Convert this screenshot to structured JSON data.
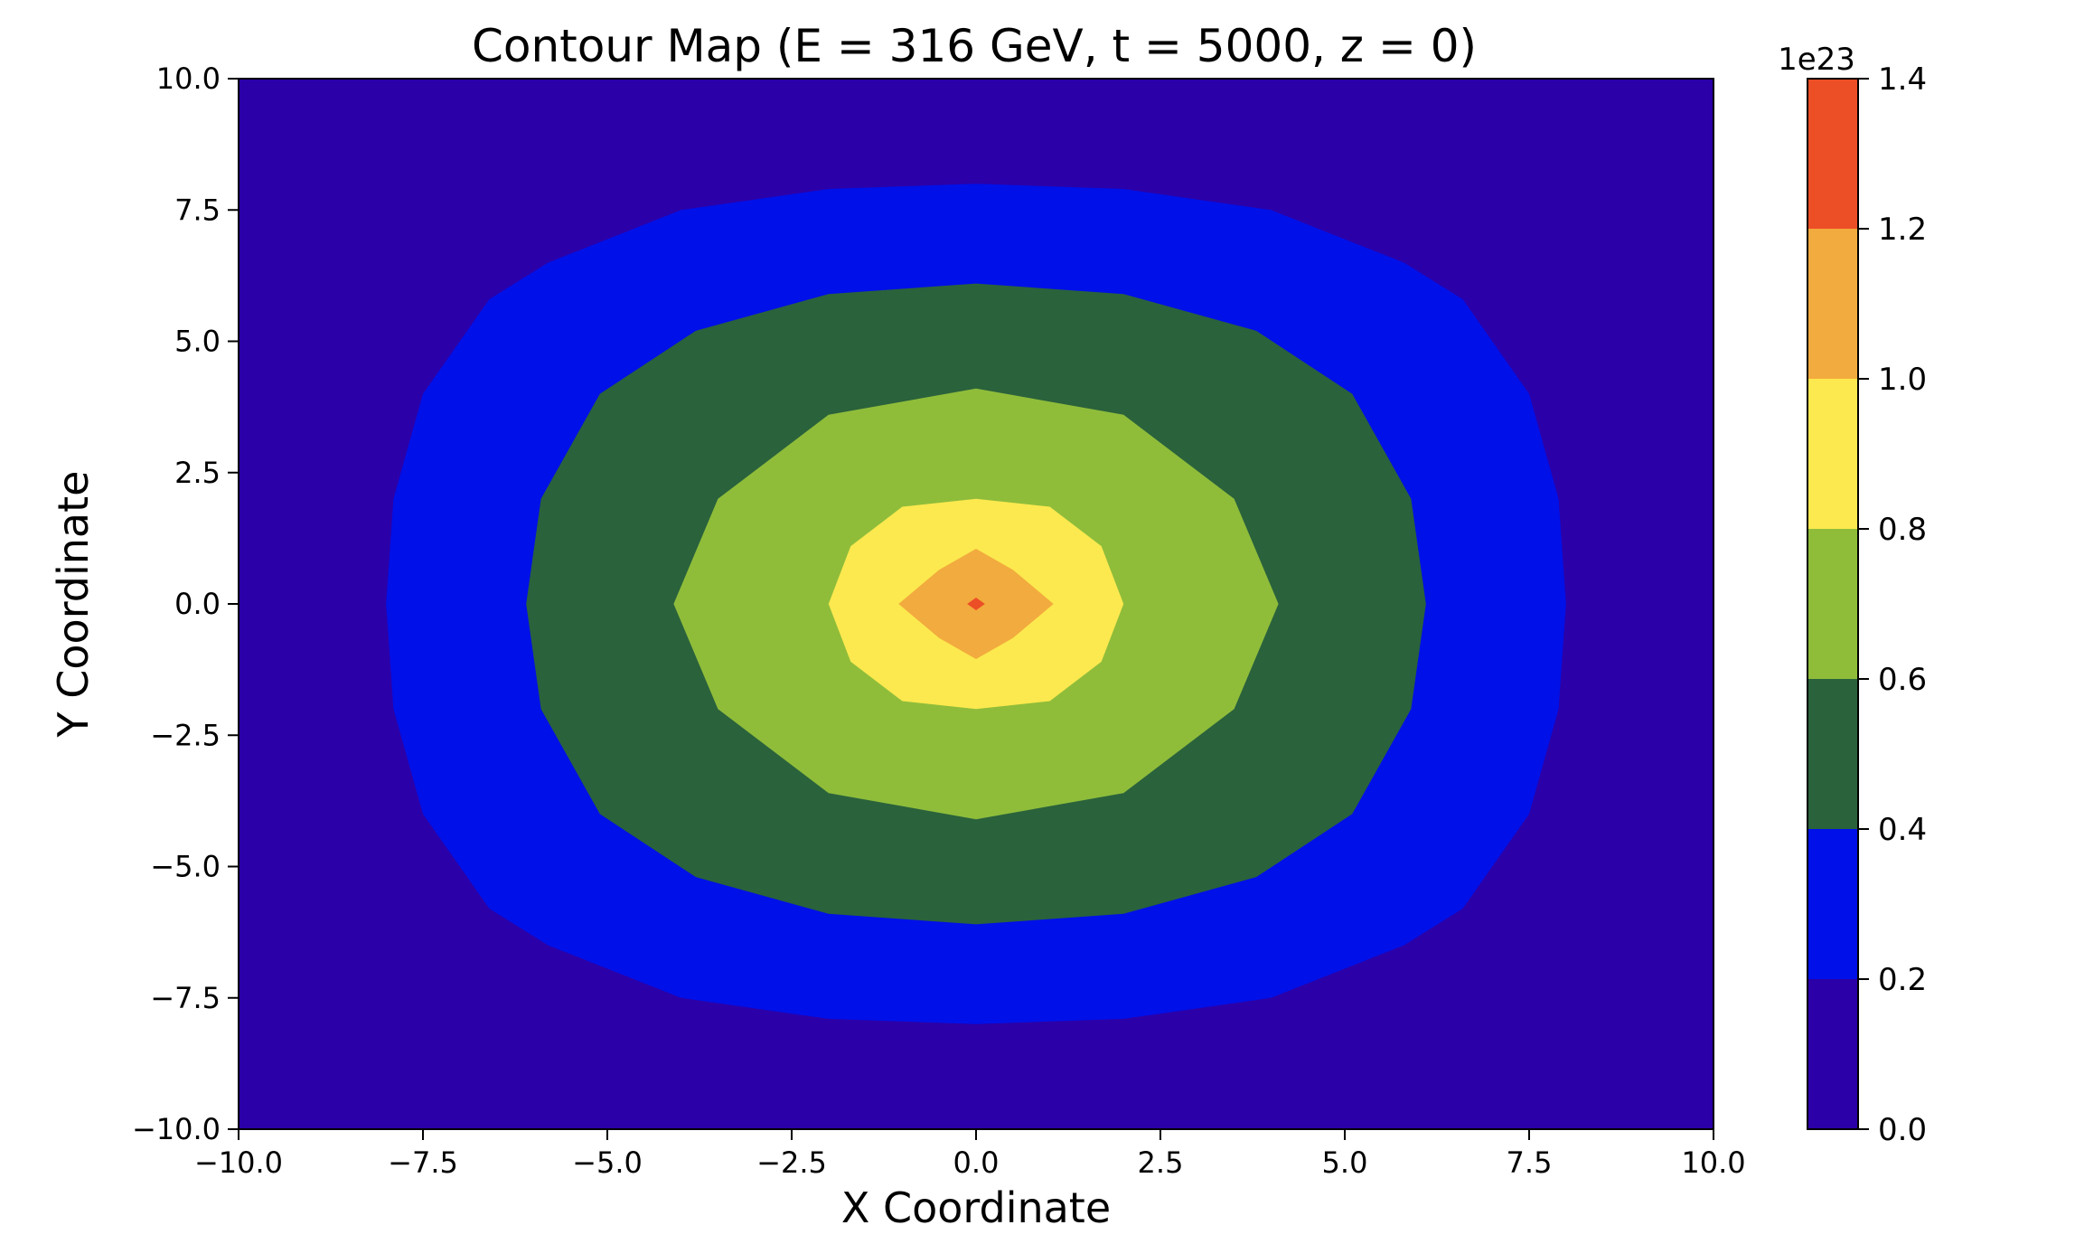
{
  "chart_data": {
    "type": "contourf",
    "title": "Contour Map (E = 316 GeV, t = 5000, z = 0)",
    "xlabel": "X Coordinate",
    "ylabel": "Y Coordinate",
    "xlim": [
      -10,
      10
    ],
    "ylim": [
      -10,
      10
    ],
    "x_ticks": [
      -10,
      -7.5,
      -5,
      -2.5,
      0,
      2.5,
      5,
      7.5,
      10
    ],
    "x_tick_labels": [
      "−10.0",
      "−7.5",
      "−5.0",
      "−2.5",
      "0.0",
      "2.5",
      "5.0",
      "7.5",
      "10.0"
    ],
    "y_ticks": [
      -10,
      -7.5,
      -5,
      -2.5,
      0,
      2.5,
      5,
      7.5,
      10
    ],
    "y_tick_labels": [
      "−10.0",
      "−7.5",
      "−5.0",
      "−2.5",
      "0.0",
      "2.5",
      "5.0",
      "7.5",
      "10.0"
    ],
    "grid": false,
    "colorbar": {
      "position": "right",
      "exponent_label": "1e23",
      "ticks": [
        0,
        0.2,
        0.4,
        0.6,
        0.8,
        1.0,
        1.2,
        1.4
      ],
      "tick_labels": [
        "0.0",
        "0.2",
        "0.4",
        "0.6",
        "0.8",
        "1.0",
        "1.2",
        "1.4"
      ]
    },
    "levels": [
      {
        "range": [
          0.0,
          0.2
        ],
        "color": "#2c00a8"
      },
      {
        "range": [
          0.2,
          0.4
        ],
        "color": "#0010e8"
      },
      {
        "range": [
          0.4,
          0.6
        ],
        "color": "#2a623c"
      },
      {
        "range": [
          0.6,
          0.8
        ],
        "color": "#8fbd3a"
      },
      {
        "range": [
          0.8,
          1.0
        ],
        "color": "#fce94f"
      },
      {
        "range": [
          1.0,
          1.2
        ],
        "color": "#f2ab3e"
      },
      {
        "range": [
          1.2,
          1.4
        ],
        "color": "#ec4e26"
      }
    ],
    "contour_boundaries": [
      {
        "level": 0.2,
        "points": [
          [
            0,
            8
          ],
          [
            2,
            7.9
          ],
          [
            4,
            7.5
          ],
          [
            5.8,
            6.5
          ],
          [
            6.6,
            5.8
          ],
          [
            7.5,
            4
          ],
          [
            7.9,
            2
          ],
          [
            8,
            0
          ],
          [
            7.9,
            -2
          ],
          [
            7.5,
            -4
          ],
          [
            6.6,
            -5.8
          ],
          [
            5.8,
            -6.5
          ],
          [
            4,
            -7.5
          ],
          [
            2,
            -7.9
          ],
          [
            0,
            -8
          ],
          [
            -2,
            -7.9
          ],
          [
            -4,
            -7.5
          ],
          [
            -5.8,
            -6.5
          ],
          [
            -6.6,
            -5.8
          ],
          [
            -7.5,
            -4
          ],
          [
            -7.9,
            -2
          ],
          [
            -8,
            0
          ],
          [
            -7.9,
            2
          ],
          [
            -7.5,
            4
          ],
          [
            -6.6,
            5.8
          ],
          [
            -5.8,
            6.5
          ],
          [
            -4,
            7.5
          ],
          [
            -2,
            7.9
          ]
        ]
      },
      {
        "level": 0.4,
        "points": [
          [
            0,
            6.1
          ],
          [
            2,
            5.9
          ],
          [
            3.8,
            5.2
          ],
          [
            5.1,
            4
          ],
          [
            5.9,
            2
          ],
          [
            6.1,
            0
          ],
          [
            5.9,
            -2
          ],
          [
            5.1,
            -4
          ],
          [
            3.8,
            -5.2
          ],
          [
            2,
            -5.9
          ],
          [
            0,
            -6.1
          ],
          [
            -2,
            -5.9
          ],
          [
            -3.8,
            -5.2
          ],
          [
            -5.1,
            -4
          ],
          [
            -5.9,
            -2
          ],
          [
            -6.1,
            0
          ],
          [
            -5.9,
            2
          ],
          [
            -5.1,
            4
          ],
          [
            -3.8,
            5.2
          ],
          [
            -2,
            5.9
          ]
        ]
      },
      {
        "level": 0.6,
        "points": [
          [
            0,
            4.1
          ],
          [
            2,
            3.6
          ],
          [
            3.5,
            2
          ],
          [
            4.1,
            0
          ],
          [
            3.5,
            -2
          ],
          [
            2,
            -3.6
          ],
          [
            0,
            -4.1
          ],
          [
            -2,
            -3.6
          ],
          [
            -3.5,
            -2
          ],
          [
            -4.1,
            0
          ],
          [
            -3.5,
            2
          ],
          [
            -2,
            3.6
          ]
        ]
      },
      {
        "level": 0.8,
        "points": [
          [
            0,
            2
          ],
          [
            1,
            1.85
          ],
          [
            1.7,
            1.1
          ],
          [
            2,
            0
          ],
          [
            1.7,
            -1.1
          ],
          [
            1,
            -1.85
          ],
          [
            0,
            -2
          ],
          [
            -1,
            -1.85
          ],
          [
            -1.7,
            -1.1
          ],
          [
            -2,
            0
          ],
          [
            -1.7,
            1.1
          ],
          [
            -1,
            1.85
          ]
        ]
      },
      {
        "level": 1.0,
        "points": [
          [
            0,
            1.05
          ],
          [
            0.5,
            0.65
          ],
          [
            1.05,
            0
          ],
          [
            0.5,
            -0.65
          ],
          [
            0,
            -1.05
          ],
          [
            -0.5,
            -0.65
          ],
          [
            -1.05,
            0
          ],
          [
            -0.5,
            0.65
          ]
        ]
      },
      {
        "level": 1.2,
        "points": [
          [
            0,
            0.12
          ],
          [
            0.12,
            0
          ],
          [
            0,
            -0.12
          ],
          [
            -0.12,
            0
          ]
        ]
      }
    ]
  }
}
